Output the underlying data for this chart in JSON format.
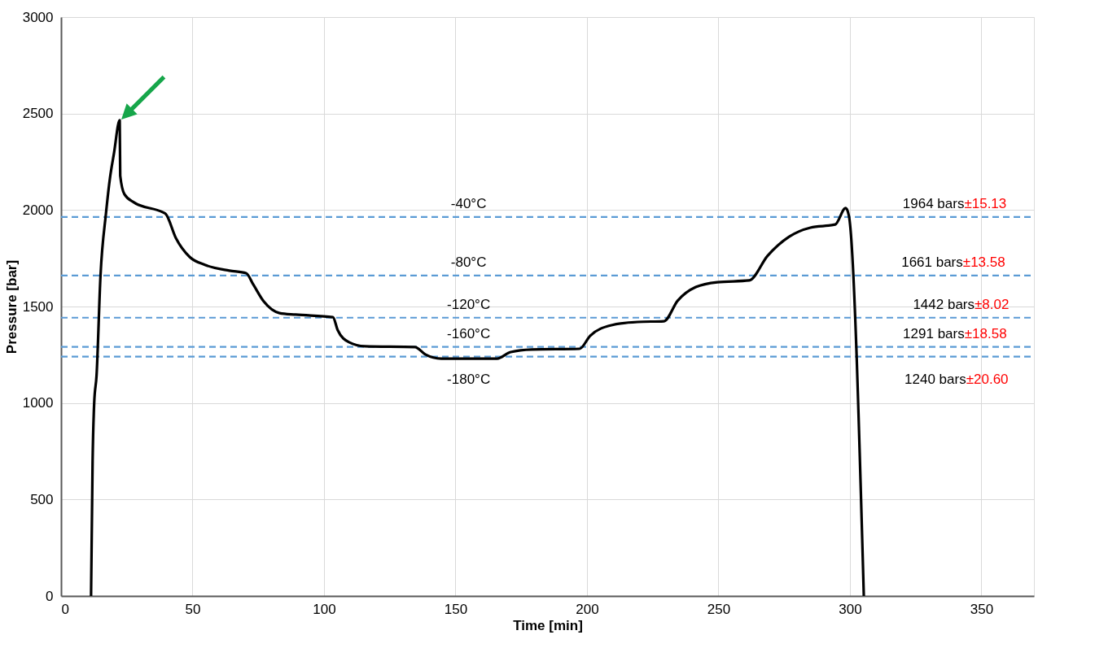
{
  "chart_data": {
    "type": "line",
    "xlabel": "Time [min]",
    "ylabel": "Pressure [bar]",
    "xlim": [
      0,
      370
    ],
    "xticks": [
      0,
      50,
      100,
      150,
      200,
      250,
      300,
      350
    ],
    "ylim": [
      0,
      3000
    ],
    "yticks": [
      0,
      500,
      1000,
      1500,
      2000,
      2500,
      3000
    ],
    "grid": true,
    "marker": "none",
    "line_style": "solid",
    "series": [
      {
        "color": "#000000",
        "x": [
          11.4,
          12.0,
          12.6,
          13.5,
          15.0,
          17.1,
          18.6,
          20.1,
          22.3,
          22.5,
          24.1,
          27.7,
          38.6,
          39.8,
          43.7,
          48.9,
          54.9,
          64.0,
          70.4,
          73.1,
          77.1,
          83.1,
          89.2,
          103.4,
          105.2,
          109.5,
          115.5,
          134.6,
          138.5,
          144.6,
          165.8,
          171.0,
          179.1,
          197.2,
          201.2,
          209.3,
          219.3,
          229.3,
          234.5,
          241.4,
          249.6,
          261.7,
          268.7,
          276.9,
          285.0,
          294.4,
          298.4,
          299.6,
          305.3
        ],
        "values": [
          0,
          700,
          1000,
          1142,
          1660,
          1985,
          2166,
          2292,
          2465,
          2178,
          2082,
          2040,
          1989,
          1980,
          1854,
          1757,
          1715,
          1686,
          1673,
          1614,
          1526,
          1466,
          1458,
          1445,
          1378,
          1315,
          1294,
          1290,
          1252,
          1230,
          1230,
          1264,
          1277,
          1281,
          1348,
          1403,
          1420,
          1424,
          1530,
          1601,
          1626,
          1635,
          1763,
          1862,
          1909,
          1925,
          2010,
          1972,
          0
        ]
      }
    ],
    "ref_lines": [
      {
        "axis": "y",
        "value": 1964,
        "color": "#5b9bd5",
        "line_style": "dashed"
      },
      {
        "axis": "y",
        "value": 1661,
        "color": "#5b9bd5",
        "line_style": "dashed"
      },
      {
        "axis": "y",
        "value": 1442,
        "color": "#5b9bd5",
        "line_style": "dashed"
      },
      {
        "axis": "y",
        "value": 1291,
        "color": "#5b9bd5",
        "line_style": "dashed"
      },
      {
        "axis": "y",
        "value": 1240,
        "color": "#5b9bd5",
        "line_style": "dashed"
      }
    ],
    "annotations": [
      {
        "text": "-40°C",
        "x": 155,
        "y": 1964
      },
      {
        "text": "-80°C",
        "x": 155,
        "y": 1661
      },
      {
        "text": "-120°C",
        "x": 155,
        "y": 1442
      },
      {
        "text": "-160°C",
        "x": 155,
        "y": 1291
      },
      {
        "text": "-180°C",
        "x": 155,
        "y": 1240
      },
      {
        "text": "1964 bars±15.13",
        "x": 343.5,
        "y": 1964
      },
      {
        "text": "1661 bars±13.58",
        "x": 343,
        "y": 1661
      },
      {
        "text": "1442 bars±8.02",
        "x": 347.4,
        "y": 1442
      },
      {
        "text": "1291 bars±18.58",
        "x": 343.6,
        "y": 1291
      },
      {
        "text": "1240 bars±20.60",
        "x": 344.2,
        "y": 1240
      }
    ]
  }
}
